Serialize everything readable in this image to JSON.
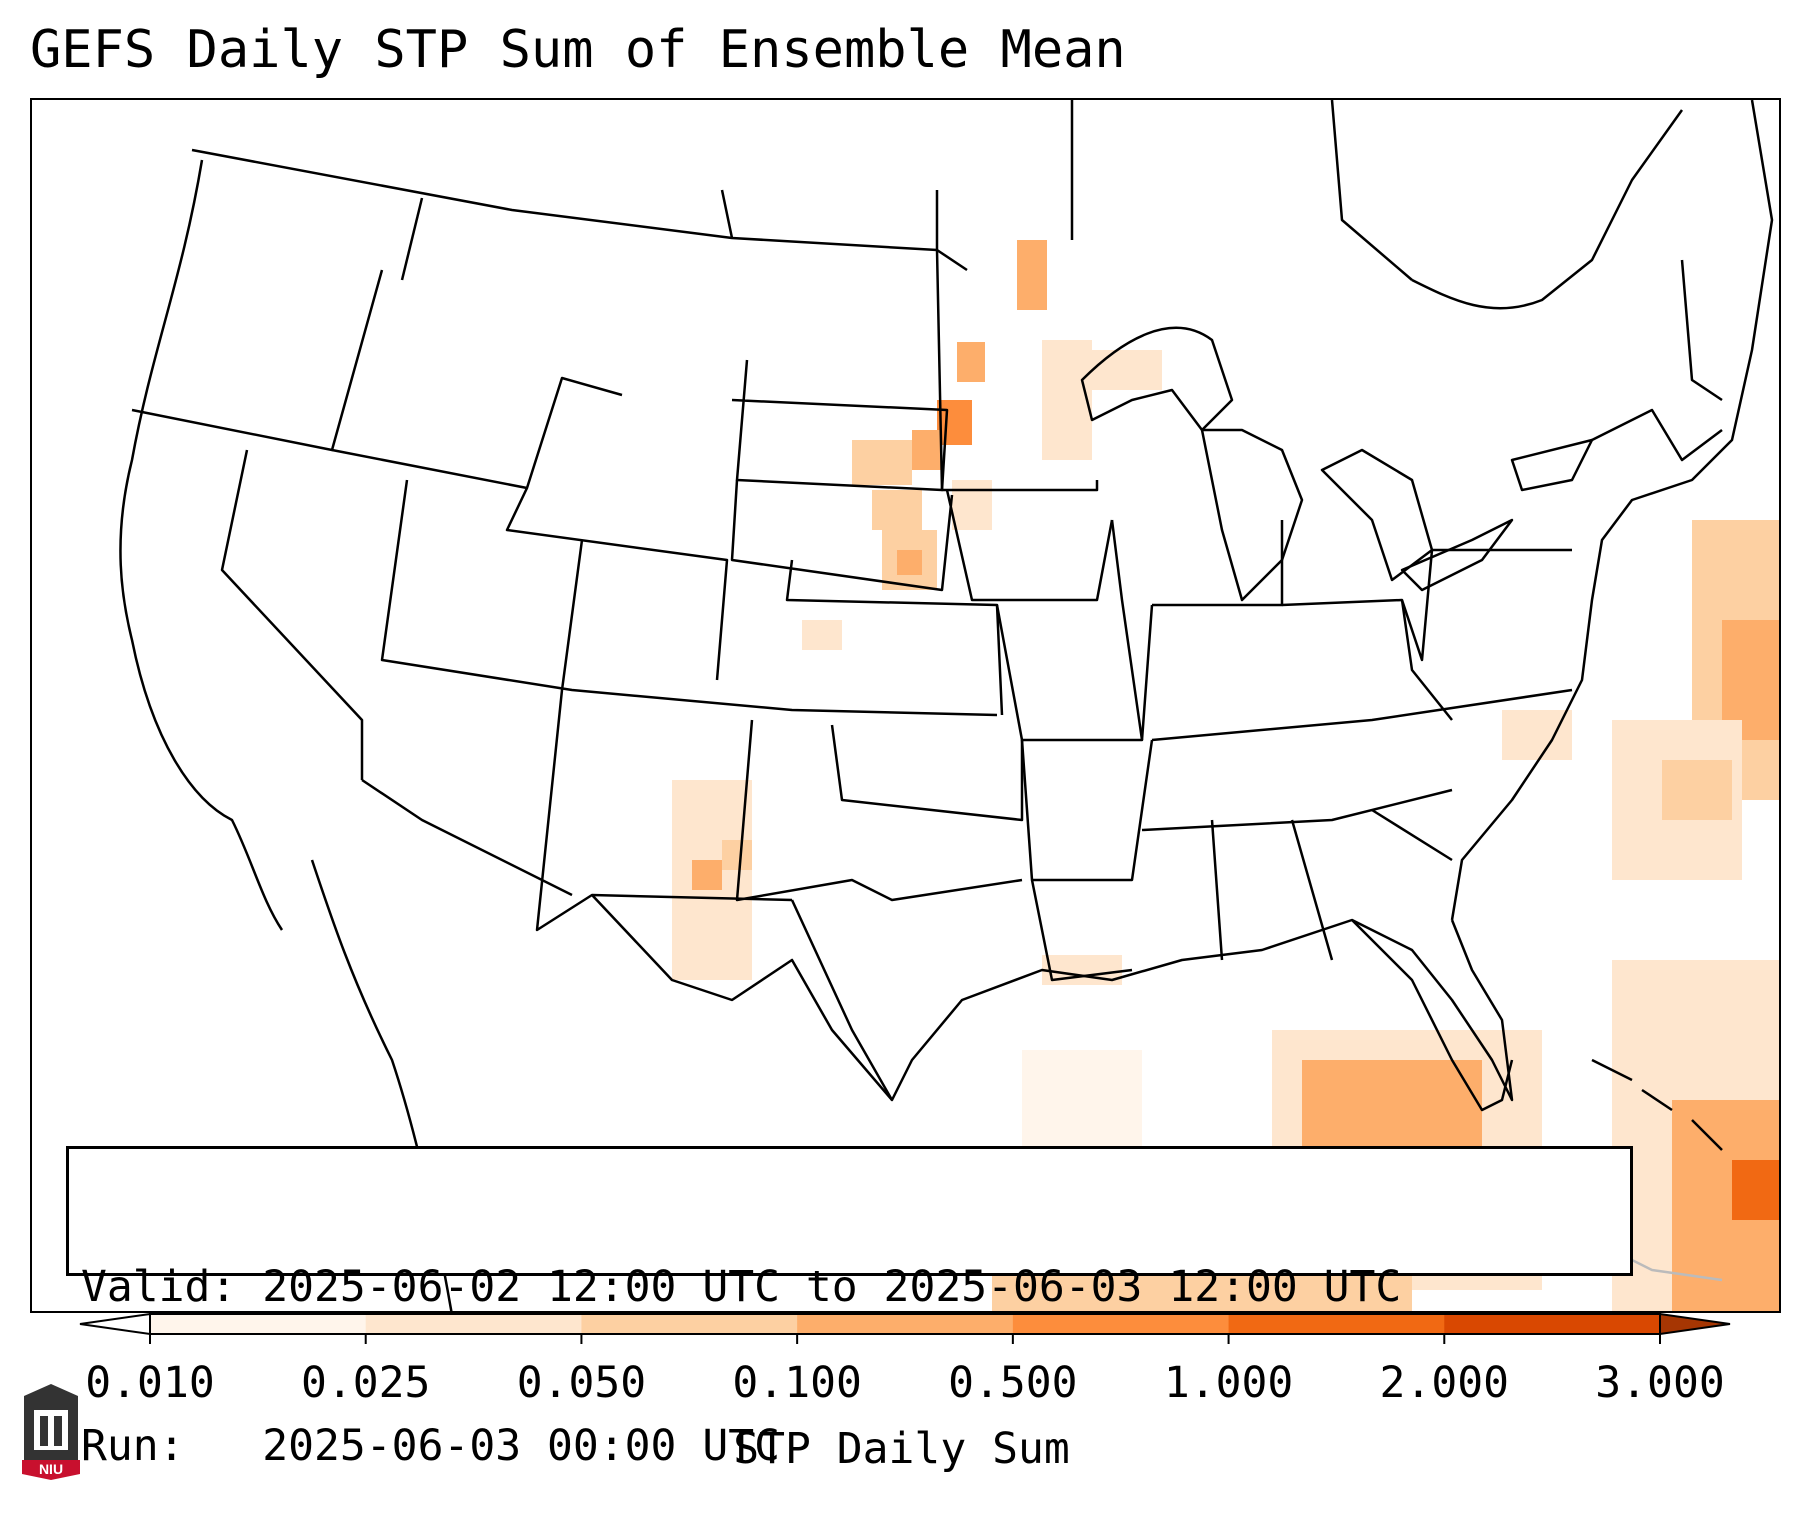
{
  "title": "GEFS Daily STP Sum of Ensemble Mean",
  "info": {
    "valid_label": "Valid:",
    "valid_value": "2025-06-02 12:00 UTC to 2025-06-03 12:00 UTC",
    "run_label": "Run:",
    "run_value": "2025-06-03 00:00 UTC"
  },
  "colorbar": {
    "label": "STP Daily Sum",
    "ticks": [
      "0.010",
      "0.025",
      "0.050",
      "0.100",
      "0.500",
      "1.000",
      "2.000",
      "3.000"
    ],
    "colors": [
      "#fff5eb",
      "#fee6ce",
      "#fdd0a2",
      "#fdae6b",
      "#fd8d3c",
      "#f16913",
      "#d94801"
    ],
    "over_color": "#a63603",
    "under_color": "#ffffff"
  },
  "logo": {
    "text": "NIU",
    "color": "#c8102e"
  }
}
